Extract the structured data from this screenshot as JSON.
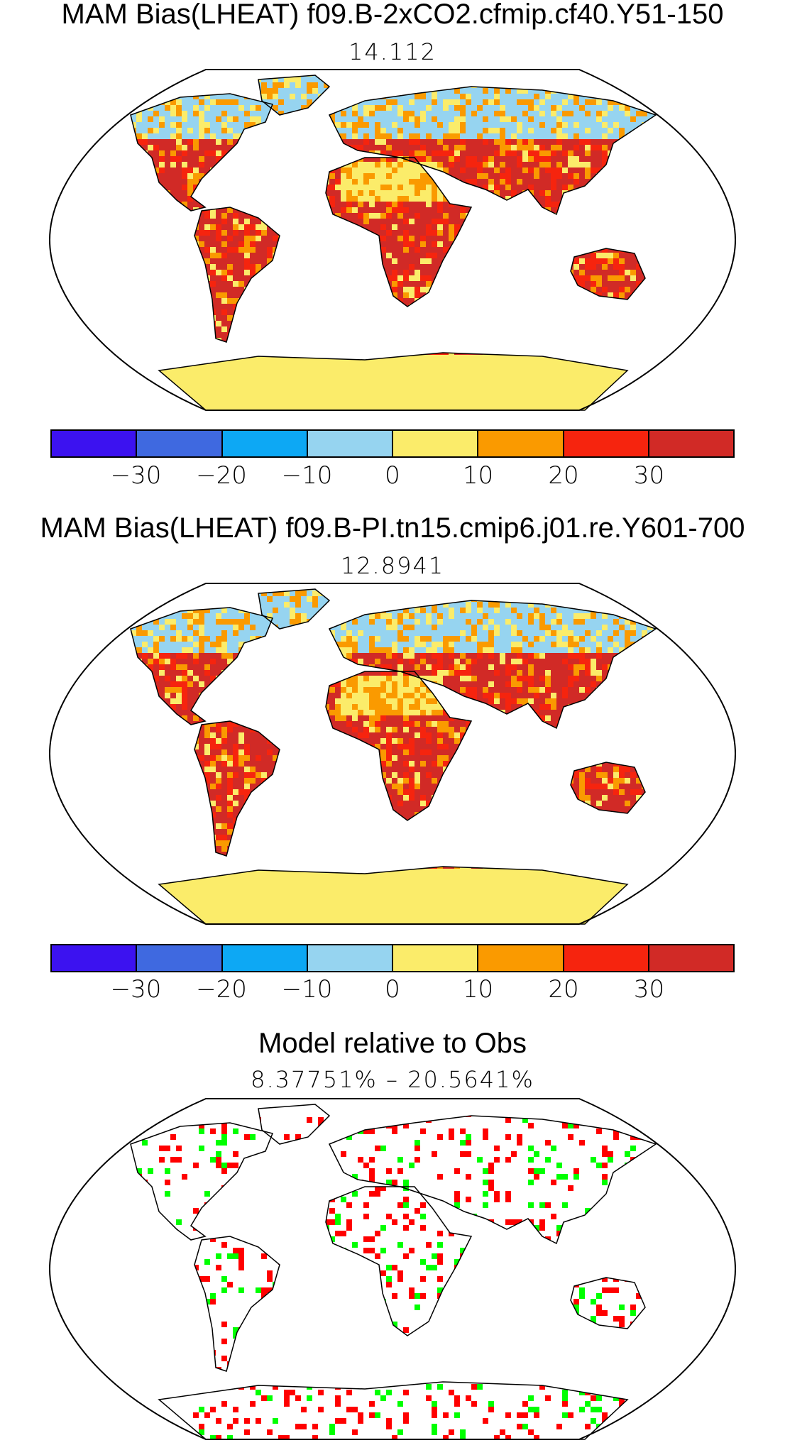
{
  "panels": [
    {
      "title": "MAM Bias(LHEAT) f09.B-2xCO2.cfmip.cf40.Y51-150",
      "subtitle": "14.112",
      "kind": "bias"
    },
    {
      "title": "MAM Bias(LHEAT) f09.B-PI.tn15.cmip6.j01.re.Y601-700",
      "subtitle": "12.8941",
      "kind": "bias"
    },
    {
      "title": "Model relative to Obs",
      "subtitle": "8.37751% – 20.5641%",
      "kind": "relative"
    }
  ],
  "colorbar": {
    "colors": [
      "#3c12f0",
      "#3f69e0",
      "#0da8f4",
      "#96d4f0",
      "#fbec6a",
      "#fa9a00",
      "#f6240e",
      "#d12a26"
    ],
    "tick_labels": [
      "−30",
      "−20",
      "−10",
      "0",
      "10",
      "20",
      "30"
    ]
  },
  "relative_colors": {
    "better": "#00ff00",
    "worse": "#ff0000"
  }
}
